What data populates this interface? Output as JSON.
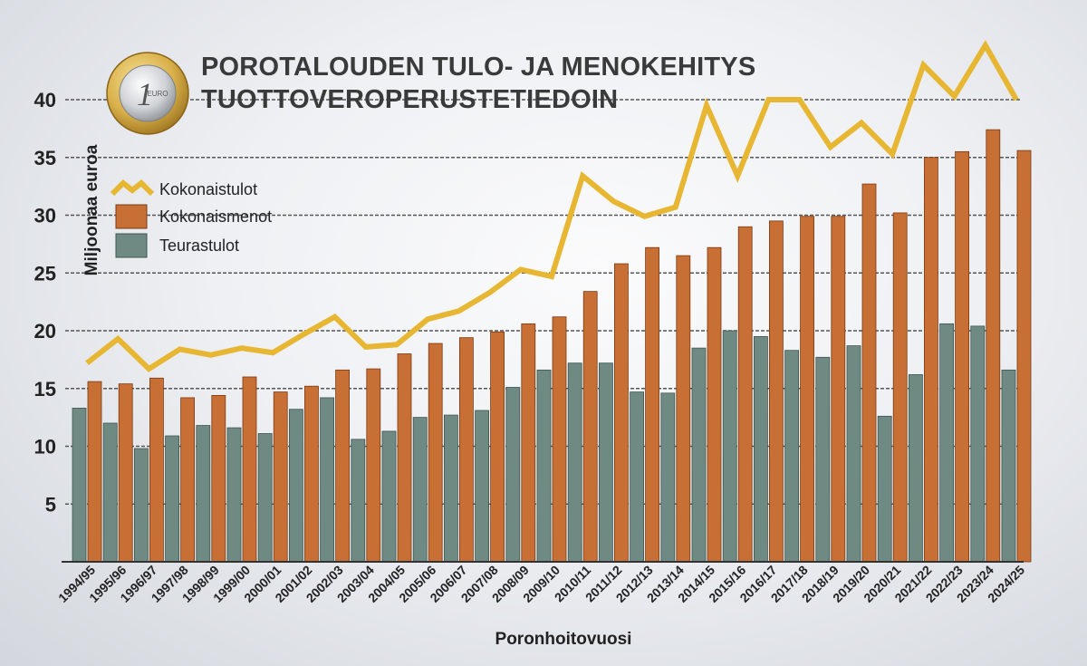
{
  "coin": {
    "value": "1",
    "currency": "EURO"
  },
  "colors": {
    "kokonaistulot": "#e7b632",
    "kokonaismenot": "#c86f35",
    "teurastulot": "#6e8a83",
    "grid": "#555555"
  },
  "chart_data": {
    "type": "bar",
    "title": "POROTALOUDEN TULO- JA MENOKEHITYS",
    "subtitle": "TUOTTOVEROPERUSTETIEDOIN",
    "xlabel": "Poronhoitovuosi",
    "ylabel": "Miljoonaa euroa",
    "ylim": [
      0,
      40
    ],
    "yticks": [
      5,
      10,
      15,
      20,
      25,
      30,
      35,
      40
    ],
    "legend": [
      "Kokonaistulot",
      "Kokonaismenot",
      "Teurastulot"
    ],
    "legend_position": "top-left",
    "categories": [
      "1994/95",
      "1995/96",
      "1996/97",
      "1997/98",
      "1998/99",
      "1999/00",
      "2000/01",
      "2001/02",
      "2002/03",
      "2003/04",
      "2004/05",
      "2005/06",
      "2006/07",
      "2007/08",
      "2008/09",
      "2009/10",
      "2010/11",
      "2011/12",
      "2012/13",
      "2013/14",
      "2014/15",
      "2015/16",
      "2016/17",
      "2017/18",
      "2018/19",
      "2019/20",
      "2020/21",
      "2021/22",
      "2022/23",
      "2023/24",
      "2024/25"
    ],
    "series": [
      {
        "name": "Teurastulot",
        "type": "bar",
        "values": [
          13.3,
          12.0,
          9.8,
          10.9,
          11.8,
          11.6,
          11.1,
          13.2,
          14.2,
          10.6,
          11.3,
          12.5,
          12.7,
          13.1,
          15.1,
          16.6,
          17.2,
          17.2,
          14.7,
          14.6,
          18.5,
          20.0,
          19.5,
          18.3,
          17.7,
          18.7,
          12.6,
          16.2,
          20.6,
          20.4,
          16.6
        ]
      },
      {
        "name": "Kokonaismenot",
        "type": "bar",
        "values": [
          15.6,
          15.4,
          15.9,
          14.2,
          14.4,
          16.0,
          14.7,
          15.2,
          16.6,
          16.7,
          18.0,
          18.9,
          19.4,
          19.9,
          20.6,
          21.2,
          23.4,
          25.8,
          27.2,
          26.5,
          27.2,
          29.0,
          29.5,
          29.9,
          29.9,
          32.7,
          30.2,
          35.0,
          35.5,
          37.4,
          35.6
        ]
      },
      {
        "name": "Kokonaistulot",
        "type": "line",
        "values": [
          17.2,
          19.3,
          16.7,
          18.4,
          17.9,
          18.5,
          18.1,
          19.7,
          21.2,
          18.6,
          18.8,
          21.0,
          21.7,
          23.3,
          25.3,
          24.7,
          33.4,
          31.2,
          29.9,
          30.7,
          39.5,
          33.4,
          40.0,
          40.0,
          35.9,
          38.0,
          35.3,
          43.0,
          40.3,
          44.7,
          40.0
        ]
      }
    ]
  }
}
